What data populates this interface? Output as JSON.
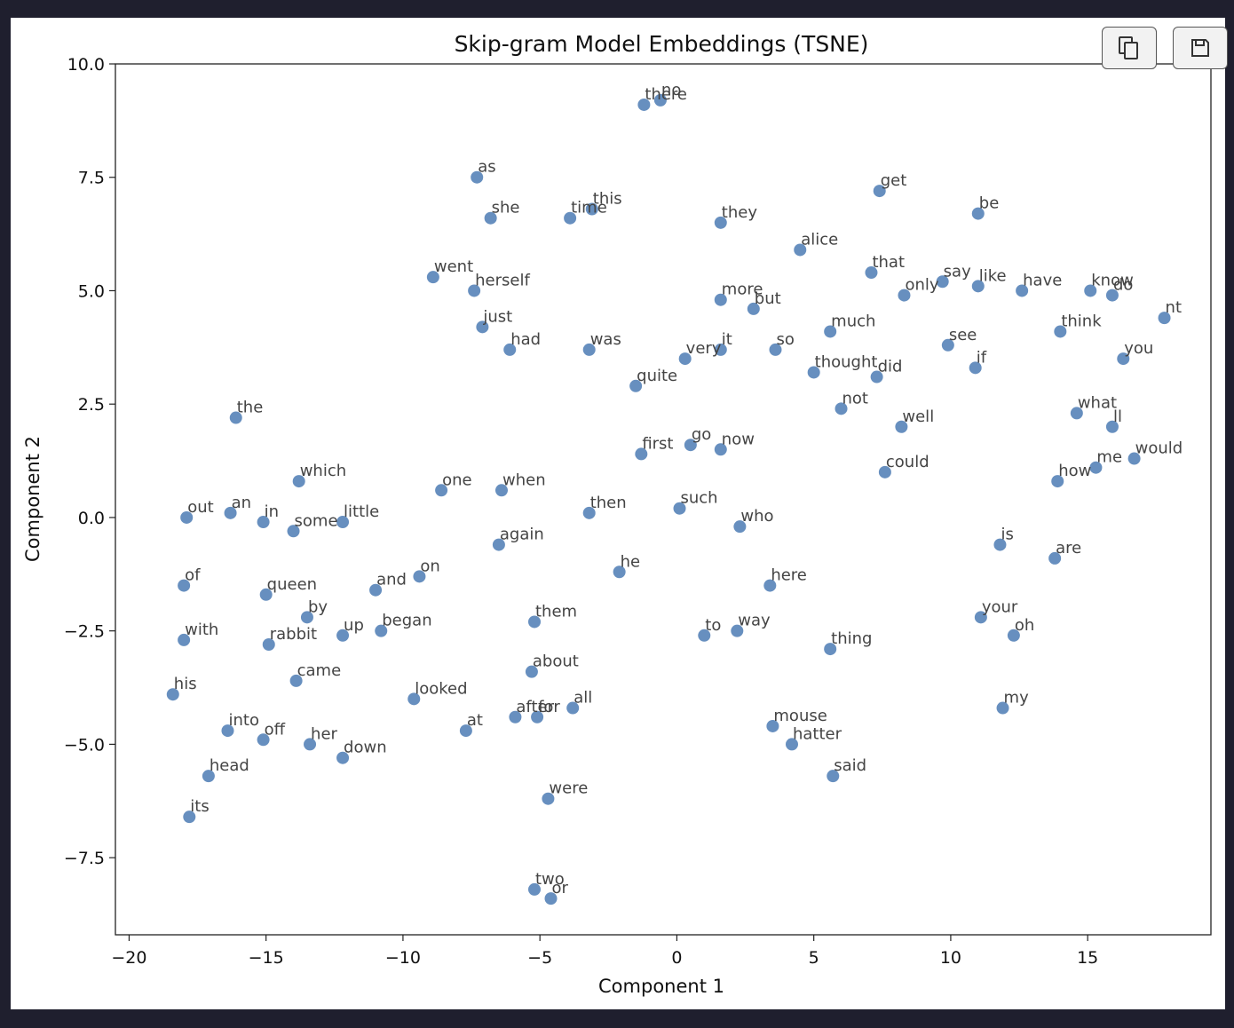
{
  "toolbar": {
    "copy_icon": "copy-icon",
    "save_icon": "floppy-disk-icon"
  },
  "chart_data": {
    "type": "scatter",
    "title": "Skip-gram Model Embeddings (TSNE)",
    "xlabel": "Component 1",
    "ylabel": "Component 2",
    "xlim": [
      -20.5,
      19.5
    ],
    "ylim": [
      -9.2,
      10.0
    ],
    "xticks": [
      -20,
      -15,
      -10,
      -5,
      0,
      5,
      10,
      15
    ],
    "yticks": [
      -7.5,
      -5.0,
      -2.5,
      0.0,
      2.5,
      5.0,
      7.5,
      10.0
    ],
    "xtick_labels": [
      "−20",
      "−15",
      "−10",
      "−5",
      "0",
      "5",
      "10",
      "15"
    ],
    "ytick_labels": [
      "−7.5",
      "−5.0",
      "−2.5",
      "0.0",
      "2.5",
      "5.0",
      "7.5",
      "10.0"
    ],
    "grid": false,
    "marker_color": "#4c7bb4",
    "points": [
      {
        "label": "there",
        "x": -1.2,
        "y": 9.1
      },
      {
        "label": "no",
        "x": -0.6,
        "y": 9.2
      },
      {
        "label": "as",
        "x": -7.3,
        "y": 7.5
      },
      {
        "label": "she",
        "x": -6.8,
        "y": 6.6
      },
      {
        "label": "time",
        "x": -3.9,
        "y": 6.6
      },
      {
        "label": "this",
        "x": -3.1,
        "y": 6.8
      },
      {
        "label": "they",
        "x": 1.6,
        "y": 6.5
      },
      {
        "label": "get",
        "x": 7.4,
        "y": 7.2
      },
      {
        "label": "be",
        "x": 11.0,
        "y": 6.7
      },
      {
        "label": "alice",
        "x": 4.5,
        "y": 5.9
      },
      {
        "label": "went",
        "x": -8.9,
        "y": 5.3
      },
      {
        "label": "herself",
        "x": -7.4,
        "y": 5.0
      },
      {
        "label": "that",
        "x": 7.1,
        "y": 5.4
      },
      {
        "label": "say",
        "x": 9.7,
        "y": 5.2
      },
      {
        "label": "like",
        "x": 11.0,
        "y": 5.1
      },
      {
        "label": "only",
        "x": 8.3,
        "y": 4.9
      },
      {
        "label": "have",
        "x": 12.6,
        "y": 5.0
      },
      {
        "label": "know",
        "x": 15.1,
        "y": 5.0
      },
      {
        "label": "do",
        "x": 15.9,
        "y": 4.9
      },
      {
        "label": "nt",
        "x": 17.8,
        "y": 4.4
      },
      {
        "label": "more",
        "x": 1.6,
        "y": 4.8
      },
      {
        "label": "but",
        "x": 2.8,
        "y": 4.6
      },
      {
        "label": "just",
        "x": -7.1,
        "y": 4.2
      },
      {
        "label": "had",
        "x": -6.1,
        "y": 3.7
      },
      {
        "label": "was",
        "x": -3.2,
        "y": 3.7
      },
      {
        "label": "very",
        "x": 0.3,
        "y": 3.5
      },
      {
        "label": "it",
        "x": 1.6,
        "y": 3.7
      },
      {
        "label": "so",
        "x": 3.6,
        "y": 3.7
      },
      {
        "label": "much",
        "x": 5.6,
        "y": 4.1
      },
      {
        "label": "think",
        "x": 14.0,
        "y": 4.1
      },
      {
        "label": "see",
        "x": 9.9,
        "y": 3.8
      },
      {
        "label": "you",
        "x": 16.3,
        "y": 3.5
      },
      {
        "label": "if",
        "x": 10.9,
        "y": 3.3
      },
      {
        "label": "thought",
        "x": 5.0,
        "y": 3.2
      },
      {
        "label": "did",
        "x": 7.3,
        "y": 3.1
      },
      {
        "label": "quite",
        "x": -1.5,
        "y": 2.9
      },
      {
        "label": "the",
        "x": -16.1,
        "y": 2.2
      },
      {
        "label": "not",
        "x": 6.0,
        "y": 2.4
      },
      {
        "label": "well",
        "x": 8.2,
        "y": 2.0
      },
      {
        "label": "what",
        "x": 14.6,
        "y": 2.3
      },
      {
        "label": "ll",
        "x": 15.9,
        "y": 2.0
      },
      {
        "label": "first",
        "x": -1.3,
        "y": 1.4
      },
      {
        "label": "go",
        "x": 0.5,
        "y": 1.6
      },
      {
        "label": "now",
        "x": 1.6,
        "y": 1.5
      },
      {
        "label": "would",
        "x": 16.7,
        "y": 1.3
      },
      {
        "label": "me",
        "x": 15.3,
        "y": 1.1
      },
      {
        "label": "how",
        "x": 13.9,
        "y": 0.8
      },
      {
        "label": "could",
        "x": 7.6,
        "y": 1.0
      },
      {
        "label": "which",
        "x": -13.8,
        "y": 0.8
      },
      {
        "label": "one",
        "x": -8.6,
        "y": 0.6
      },
      {
        "label": "when",
        "x": -6.4,
        "y": 0.6
      },
      {
        "label": "out",
        "x": -17.9,
        "y": 0.0
      },
      {
        "label": "an",
        "x": -16.3,
        "y": 0.1
      },
      {
        "label": "in",
        "x": -15.1,
        "y": -0.1
      },
      {
        "label": "some",
        "x": -14.0,
        "y": -0.3
      },
      {
        "label": "little",
        "x": -12.2,
        "y": -0.1
      },
      {
        "label": "then",
        "x": -3.2,
        "y": 0.1
      },
      {
        "label": "such",
        "x": 0.1,
        "y": 0.2
      },
      {
        "label": "who",
        "x": 2.3,
        "y": -0.2
      },
      {
        "label": "again",
        "x": -6.5,
        "y": -0.6
      },
      {
        "label": "is",
        "x": 11.8,
        "y": -0.6
      },
      {
        "label": "are",
        "x": 13.8,
        "y": -0.9
      },
      {
        "label": "of",
        "x": -18.0,
        "y": -1.5
      },
      {
        "label": "queen",
        "x": -15.0,
        "y": -1.7
      },
      {
        "label": "and",
        "x": -11.0,
        "y": -1.6
      },
      {
        "label": "on",
        "x": -9.4,
        "y": -1.3
      },
      {
        "label": "he",
        "x": -2.1,
        "y": -1.2
      },
      {
        "label": "here",
        "x": 3.4,
        "y": -1.5
      },
      {
        "label": "by",
        "x": -13.5,
        "y": -2.2
      },
      {
        "label": "up",
        "x": -12.2,
        "y": -2.6
      },
      {
        "label": "began",
        "x": -10.8,
        "y": -2.5
      },
      {
        "label": "them",
        "x": -5.2,
        "y": -2.3
      },
      {
        "label": "with",
        "x": -18.0,
        "y": -2.7
      },
      {
        "label": "rabbit",
        "x": -14.9,
        "y": -2.8
      },
      {
        "label": "to",
        "x": 1.0,
        "y": -2.6
      },
      {
        "label": "way",
        "x": 2.2,
        "y": -2.5
      },
      {
        "label": "thing",
        "x": 5.6,
        "y": -2.9
      },
      {
        "label": "your",
        "x": 11.1,
        "y": -2.2
      },
      {
        "label": "oh",
        "x": 12.3,
        "y": -2.6
      },
      {
        "label": "came",
        "x": -13.9,
        "y": -3.6
      },
      {
        "label": "about",
        "x": -5.3,
        "y": -3.4
      },
      {
        "label": "his",
        "x": -18.4,
        "y": -3.9
      },
      {
        "label": "looked",
        "x": -9.6,
        "y": -4.0
      },
      {
        "label": "all",
        "x": -3.8,
        "y": -4.2
      },
      {
        "label": "after",
        "x": -5.9,
        "y": -4.4
      },
      {
        "label": "for",
        "x": -5.1,
        "y": -4.4
      },
      {
        "label": "my",
        "x": 11.9,
        "y": -4.2
      },
      {
        "label": "mouse",
        "x": 3.5,
        "y": -4.6
      },
      {
        "label": "into",
        "x": -16.4,
        "y": -4.7
      },
      {
        "label": "off",
        "x": -15.1,
        "y": -4.9
      },
      {
        "label": "at",
        "x": -7.7,
        "y": -4.7
      },
      {
        "label": "her",
        "x": -13.4,
        "y": -5.0
      },
      {
        "label": "down",
        "x": -12.2,
        "y": -5.3
      },
      {
        "label": "hatter",
        "x": 4.2,
        "y": -5.0
      },
      {
        "label": "head",
        "x": -17.1,
        "y": -5.7
      },
      {
        "label": "said",
        "x": 5.7,
        "y": -5.7
      },
      {
        "label": "were",
        "x": -4.7,
        "y": -6.2
      },
      {
        "label": "its",
        "x": -17.8,
        "y": -6.6
      },
      {
        "label": "two",
        "x": -5.2,
        "y": -8.2
      },
      {
        "label": "or",
        "x": -4.6,
        "y": -8.4
      }
    ]
  }
}
